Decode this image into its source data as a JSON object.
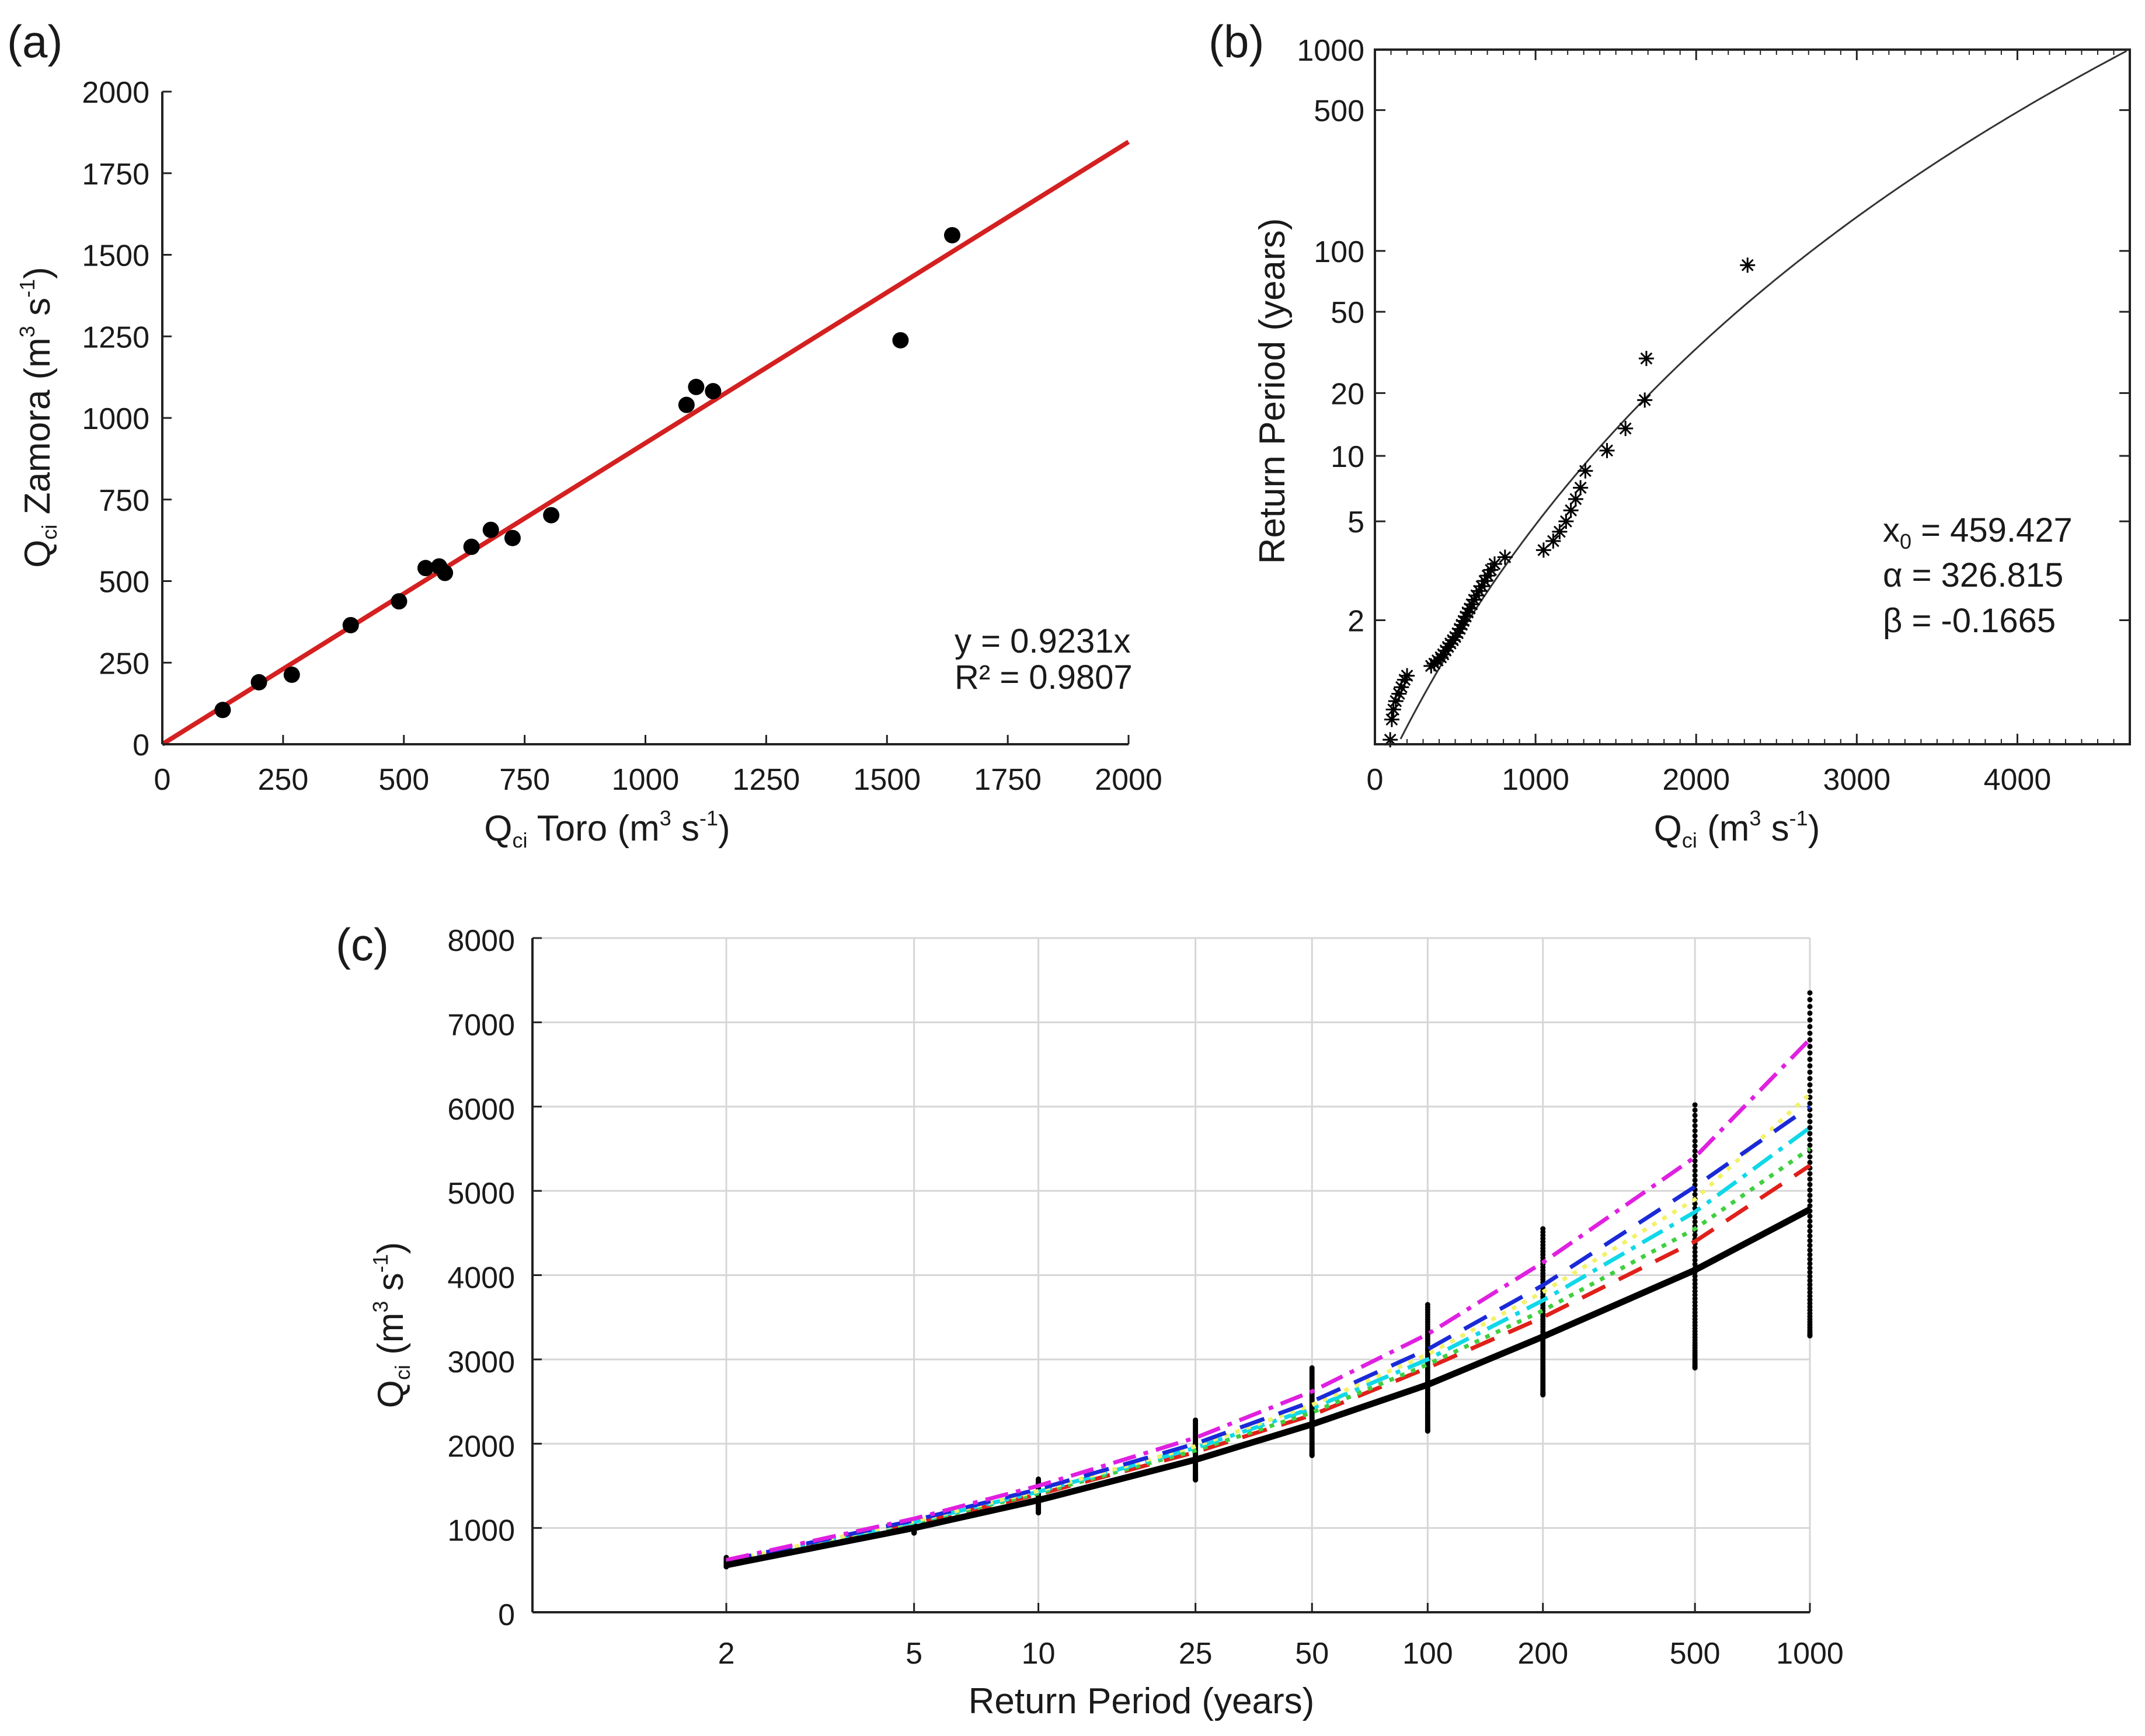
{
  "panels": {
    "a": {
      "label": "(a)"
    },
    "b": {
      "label": "(b)"
    },
    "c": {
      "label": "(c)"
    }
  },
  "chart_data": [
    {
      "id": "a",
      "type": "scatter",
      "title": "",
      "xlabel": {
        "main": "Q",
        "sub": "ci",
        "rest": " Toro (m",
        "sup1": "3",
        "mid": " s",
        "sup2": "-1",
        "end": ")"
      },
      "ylabel": {
        "main": "Q",
        "sub": "ci",
        "rest": " Zamora (m",
        "sup1": "3",
        "mid": " s",
        "sup2": "-1",
        "end": ")"
      },
      "xlim": [
        0,
        2000
      ],
      "ylim": [
        0,
        2000
      ],
      "xticks": [
        0,
        250,
        500,
        750,
        1000,
        1250,
        1500,
        1750,
        2000
      ],
      "yticks": [
        0,
        250,
        500,
        750,
        1000,
        1250,
        1500,
        1750,
        2000
      ],
      "points": [
        {
          "x": 125,
          "y": 105
        },
        {
          "x": 200,
          "y": 190
        },
        {
          "x": 268,
          "y": 213
        },
        {
          "x": 390,
          "y": 365
        },
        {
          "x": 490,
          "y": 438
        },
        {
          "x": 545,
          "y": 540
        },
        {
          "x": 573,
          "y": 545
        },
        {
          "x": 585,
          "y": 525
        },
        {
          "x": 640,
          "y": 605
        },
        {
          "x": 680,
          "y": 657
        },
        {
          "x": 725,
          "y": 632
        },
        {
          "x": 805,
          "y": 702
        },
        {
          "x": 1085,
          "y": 1040
        },
        {
          "x": 1105,
          "y": 1095
        },
        {
          "x": 1140,
          "y": 1082
        },
        {
          "x": 1528,
          "y": 1238
        },
        {
          "x": 1635,
          "y": 1560
        }
      ],
      "fit": {
        "slope": 0.9231,
        "color": "#d42020",
        "x_range": [
          0,
          2000
        ]
      },
      "annotations": {
        "equation": "y = 0.9231x",
        "r2": "R² = 0.9807"
      }
    },
    {
      "id": "b",
      "type": "scatter",
      "title": "",
      "xlabel": {
        "main": "Q",
        "sub": "ci",
        "rest": " (m",
        "sup1": "3",
        "mid": " s",
        "sup2": "-1",
        "end": ")"
      },
      "ylabel": "Return Period (years)",
      "xlim": [
        0,
        4700
      ],
      "ylim": [
        1.06,
        1000
      ],
      "yscale": "gumbel-probability",
      "xticks": [
        0,
        1000,
        2000,
        3000,
        4000
      ],
      "yticks": [
        2,
        5,
        10,
        20,
        50,
        100,
        500,
        1000
      ],
      "ytick_labels": [
        "2",
        "5",
        "10",
        "20",
        "50",
        "100",
        "500",
        "1000"
      ],
      "points": [
        {
          "x": 95,
          "y": 1.07
        },
        {
          "x": 105,
          "y": 1.13
        },
        {
          "x": 115,
          "y": 1.17
        },
        {
          "x": 130,
          "y": 1.21
        },
        {
          "x": 150,
          "y": 1.25
        },
        {
          "x": 165,
          "y": 1.29
        },
        {
          "x": 185,
          "y": 1.34
        },
        {
          "x": 200,
          "y": 1.37
        },
        {
          "x": 350,
          "y": 1.45
        },
        {
          "x": 370,
          "y": 1.47
        },
        {
          "x": 390,
          "y": 1.5
        },
        {
          "x": 410,
          "y": 1.53
        },
        {
          "x": 425,
          "y": 1.56
        },
        {
          "x": 440,
          "y": 1.6
        },
        {
          "x": 455,
          "y": 1.64
        },
        {
          "x": 470,
          "y": 1.68
        },
        {
          "x": 485,
          "y": 1.72
        },
        {
          "x": 500,
          "y": 1.76
        },
        {
          "x": 515,
          "y": 1.81
        },
        {
          "x": 528,
          "y": 1.87
        },
        {
          "x": 540,
          "y": 1.93
        },
        {
          "x": 552,
          "y": 1.99
        },
        {
          "x": 565,
          "y": 2.06
        },
        {
          "x": 577,
          "y": 2.13
        },
        {
          "x": 590,
          "y": 2.2
        },
        {
          "x": 603,
          "y": 2.28
        },
        {
          "x": 617,
          "y": 2.37
        },
        {
          "x": 632,
          "y": 2.46
        },
        {
          "x": 648,
          "y": 2.56
        },
        {
          "x": 665,
          "y": 2.67
        },
        {
          "x": 683,
          "y": 2.8
        },
        {
          "x": 702,
          "y": 2.94
        },
        {
          "x": 722,
          "y": 3.1
        },
        {
          "x": 745,
          "y": 3.28
        },
        {
          "x": 810,
          "y": 3.5
        },
        {
          "x": 1050,
          "y": 3.75
        },
        {
          "x": 1110,
          "y": 4.1
        },
        {
          "x": 1150,
          "y": 4.5
        },
        {
          "x": 1190,
          "y": 5.0
        },
        {
          "x": 1220,
          "y": 5.6
        },
        {
          "x": 1250,
          "y": 6.3
        },
        {
          "x": 1280,
          "y": 7.1
        },
        {
          "x": 1310,
          "y": 8.5
        },
        {
          "x": 1445,
          "y": 10.6
        },
        {
          "x": 1560,
          "y": 13.5
        },
        {
          "x": 1680,
          "y": 18.5
        },
        {
          "x": 1690,
          "y": 29.5
        },
        {
          "x": 2320,
          "y": 85
        }
      ],
      "fit_curve": {
        "x0": 459.427,
        "alpha": 326.815,
        "beta": -0.1665
      },
      "annotations": {
        "x0_label": "x",
        "x0_sub": "0",
        "x0_value": " = 459.427",
        "alpha": "α = 326.815",
        "beta": "β = -0.1665"
      }
    },
    {
      "id": "c",
      "type": "line",
      "title": "",
      "xlabel": "Return Period (years)",
      "ylabel": {
        "main": "Q",
        "sub": "ci",
        "rest": " (m",
        "sup1": "3",
        "mid": " s",
        "sup2": "-1",
        "end": ")"
      },
      "xscale": "gumbel-probability",
      "xlim_T": [
        1.12,
        1000
      ],
      "ylim": [
        0,
        8000
      ],
      "grid": true,
      "categories": [
        "2",
        "5",
        "10",
        "25",
        "50",
        "100",
        "200",
        "500",
        "1000"
      ],
      "x": [
        2,
        5,
        10,
        25,
        50,
        100,
        200,
        500,
        1000
      ],
      "yticks": [
        0,
        1000,
        2000,
        3000,
        4000,
        5000,
        6000,
        7000,
        8000
      ],
      "series": [
        {
          "name": "black-solid",
          "color": "#000000",
          "dash": "",
          "width": 11,
          "values": [
            560,
            1000,
            1330,
            1810,
            2230,
            2700,
            3270,
            4060,
            4780
          ]
        },
        {
          "name": "red-dashed",
          "color": "#e0201a",
          "dash": "44 26",
          "width": 7,
          "values": [
            590,
            1050,
            1400,
            1900,
            2340,
            2900,
            3500,
            4400,
            5300
          ]
        },
        {
          "name": "green-dotted",
          "color": "#3fcf3f",
          "dash": "8 12",
          "width": 7,
          "values": [
            595,
            1060,
            1410,
            1920,
            2370,
            2940,
            3580,
            4550,
            5500
          ]
        },
        {
          "name": "cyan-dashdot",
          "color": "#10d8e8",
          "dash": "40 14 8 14",
          "width": 7,
          "values": [
            600,
            1070,
            1430,
            1950,
            2420,
            3000,
            3700,
            4750,
            5750
          ]
        },
        {
          "name": "yellow-dotted",
          "color": "#f2f26a",
          "dash": "8 12",
          "width": 7,
          "values": [
            605,
            1080,
            1440,
            1970,
            2460,
            3060,
            3800,
            4900,
            6150
          ]
        },
        {
          "name": "blue-dashed",
          "color": "#1a2ad8",
          "dash": "44 26",
          "width": 7,
          "values": [
            610,
            1090,
            1460,
            2000,
            2500,
            3120,
            3880,
            5050,
            6000
          ]
        },
        {
          "name": "magenta-dashdot",
          "color": "#e020e0",
          "dash": "40 14 8 14",
          "width": 7,
          "values": [
            620,
            1110,
            1500,
            2070,
            2620,
            3300,
            4150,
            5400,
            6800
          ]
        }
      ],
      "sample_spread": {
        "description": "vertical clusters of simulated values at each return period",
        "min": [
          540,
          940,
          1180,
          1570,
          1860,
          2150,
          2580,
          2900,
          3280
        ],
        "max": [
          650,
          1100,
          1580,
          2280,
          2900,
          3650,
          4550,
          6020,
          7350
        ]
      }
    }
  ]
}
